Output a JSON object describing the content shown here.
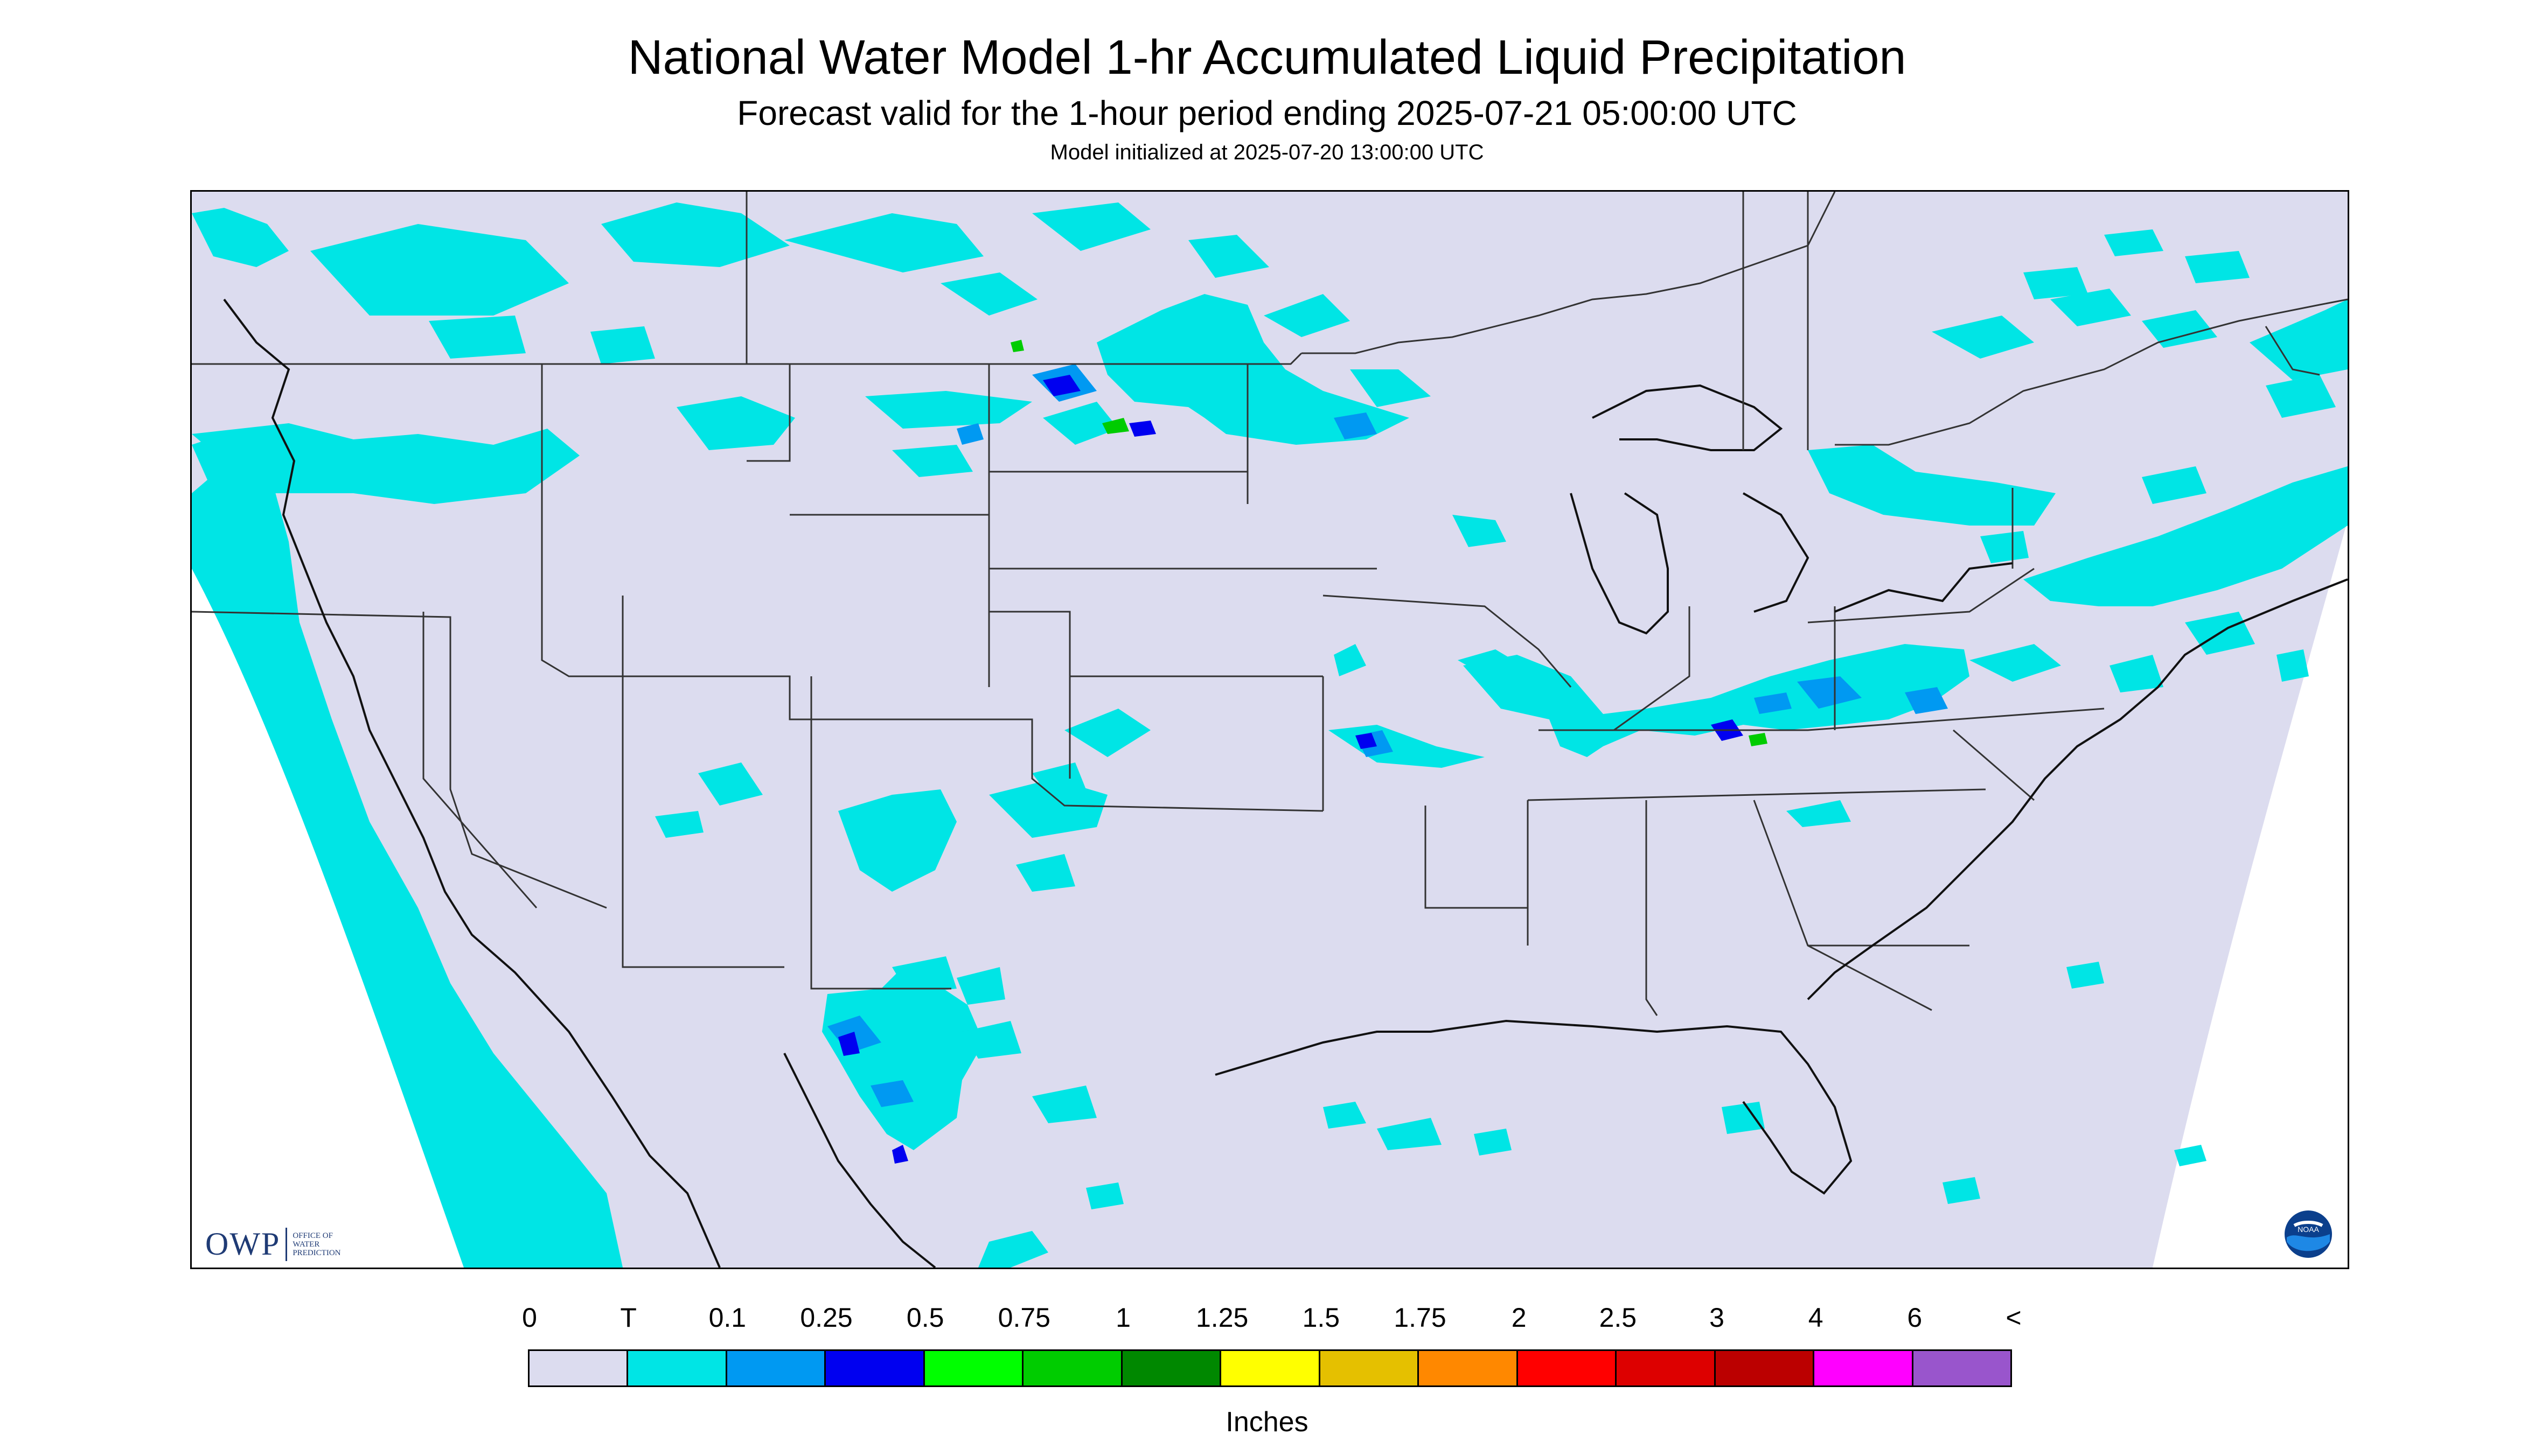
{
  "header": {
    "title": "National Water Model 1-hr Accumulated Liquid Precipitation",
    "subtitle": "Forecast valid for the 1-hour period ending 2025-07-21 05:00:00 UTC",
    "init": "Model initialized at 2025-07-20 13:00:00 UTC"
  },
  "map": {
    "background_color": "#dcdcef",
    "offgrid_color": "#ffffff",
    "border_color": "#333333",
    "logos": {
      "owp_text": "OWP",
      "owp_small": [
        "OFFICE OF",
        "WATER",
        "PREDICTION"
      ],
      "noaa_text": "NOAA"
    }
  },
  "legend": {
    "labels": [
      "0",
      "T",
      "0.1",
      "0.25",
      "0.5",
      "0.75",
      "1",
      "1.25",
      "1.5",
      "1.75",
      "2",
      "2.5",
      "3",
      "4",
      "6",
      "<"
    ],
    "colors": [
      "#dcdcef",
      "#00e5e5",
      "#0099f2",
      "#0000f0",
      "#00ff00",
      "#00cc00",
      "#008800",
      "#ffff00",
      "#e5c000",
      "#ff8800",
      "#ff0000",
      "#dd0000",
      "#bb0000",
      "#ff00ff",
      "#9955cc"
    ],
    "units": "Inches"
  }
}
